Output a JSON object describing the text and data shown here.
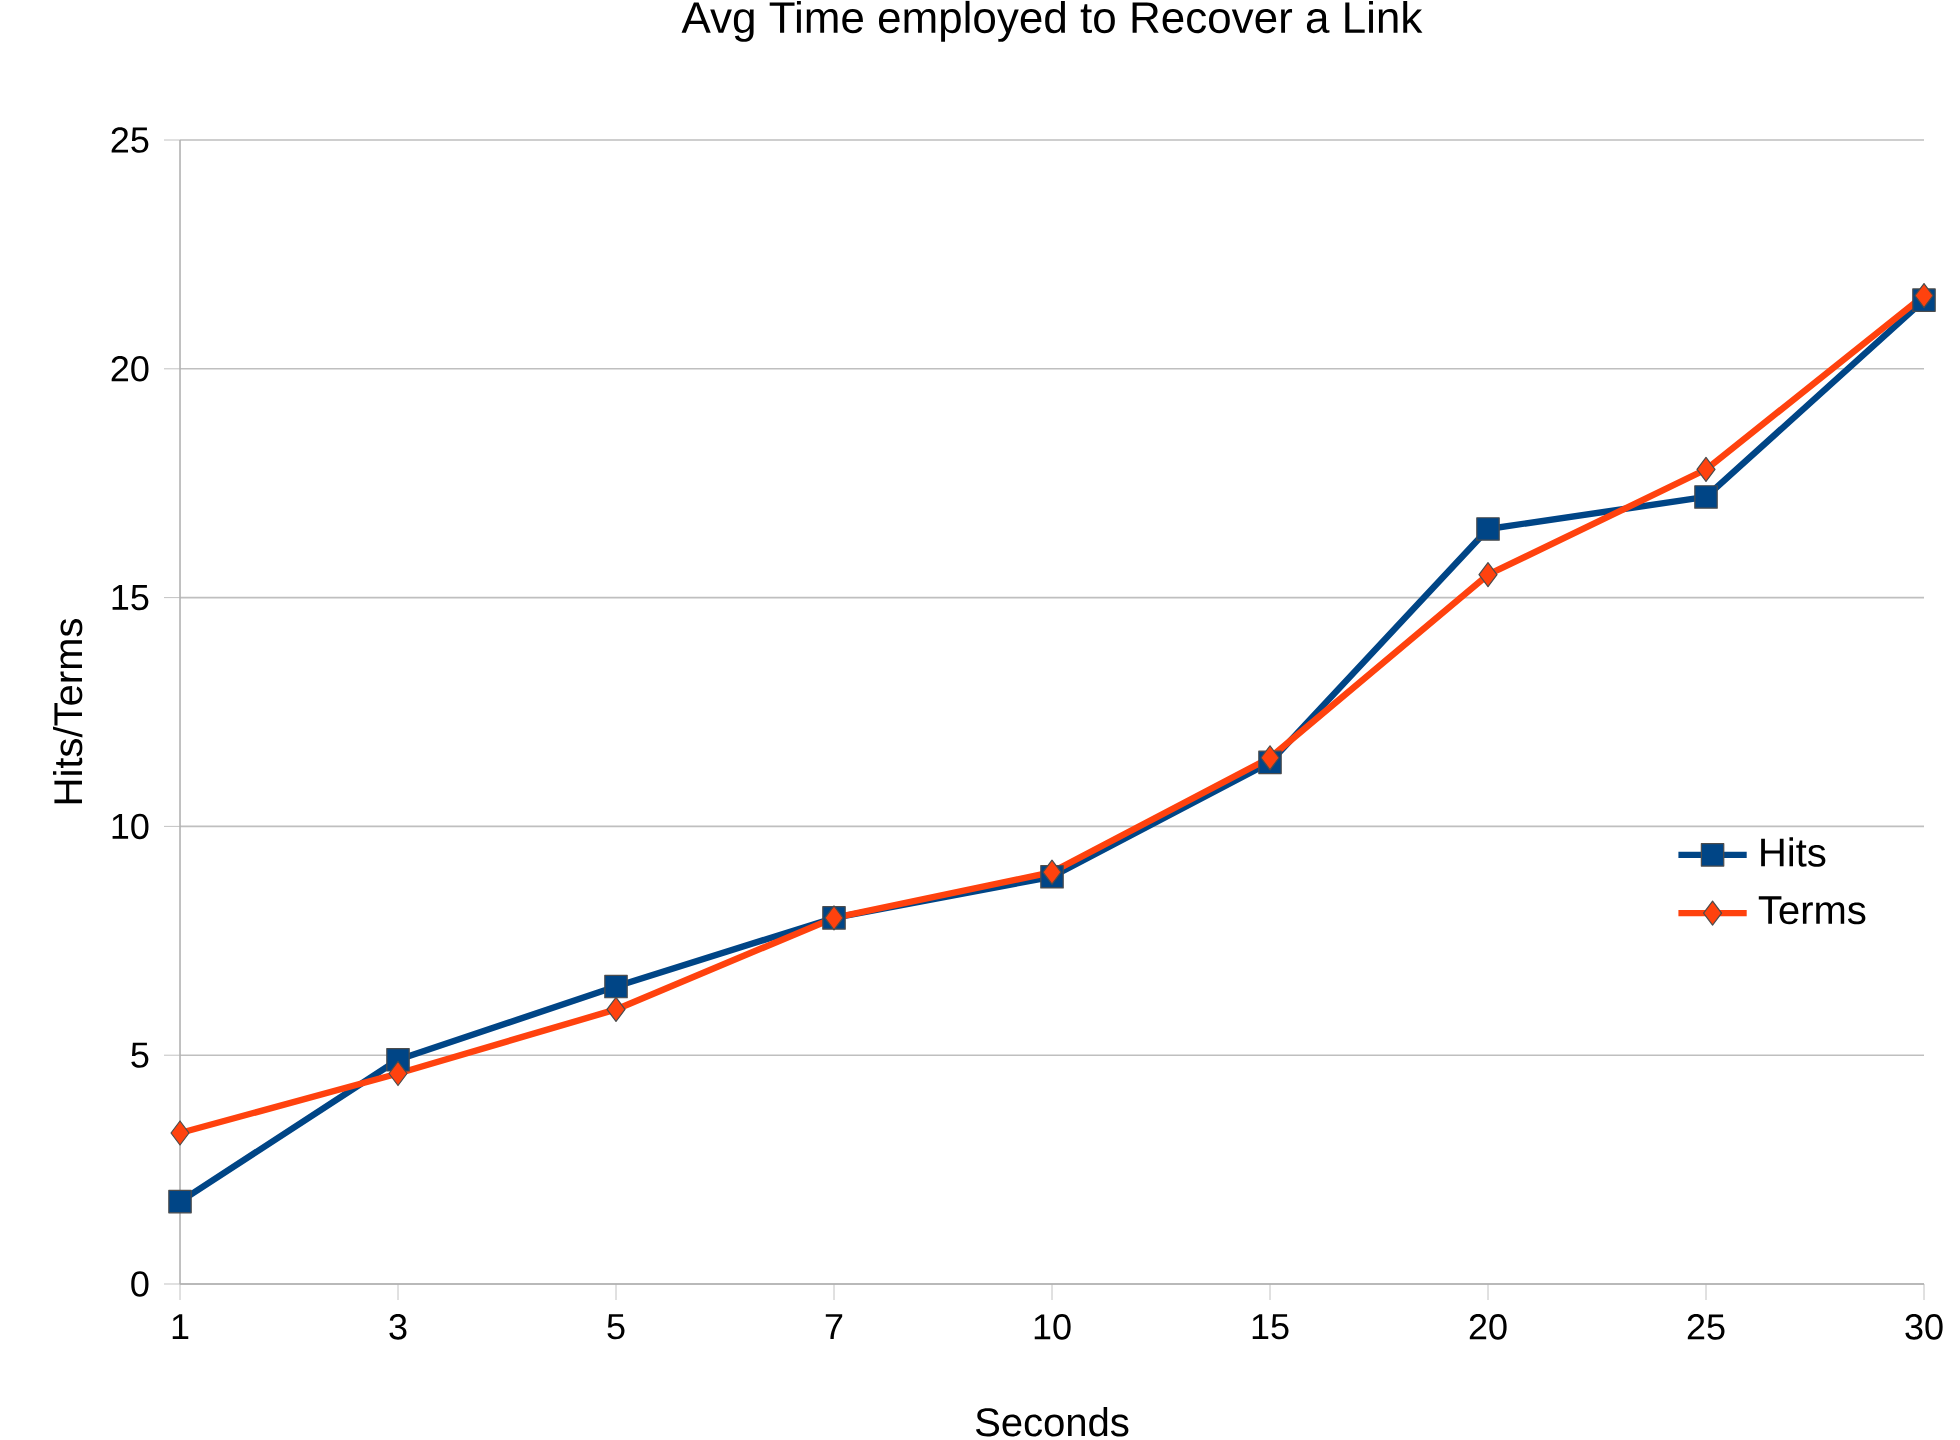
{
  "chart_data": {
    "type": "line",
    "title": "Avg Time employed to Recover a Link",
    "xlabel": "Seconds",
    "ylabel": "Hits/Terms",
    "categories": [
      "1",
      "3",
      "5",
      "7",
      "10",
      "15",
      "20",
      "25",
      "30"
    ],
    "series": [
      {
        "name": "Hits",
        "color": "#004586",
        "marker": "square",
        "values": [
          1.8,
          4.9,
          6.5,
          8.0,
          8.9,
          11.4,
          16.5,
          17.2,
          21.5
        ]
      },
      {
        "name": "Terms",
        "color": "#ff420e",
        "marker": "diamond",
        "values": [
          3.3,
          4.6,
          6.0,
          8.0,
          9.0,
          11.5,
          15.5,
          17.8,
          21.6
        ]
      }
    ],
    "ylim": [
      0,
      25
    ],
    "yticks": [
      0,
      5,
      10,
      15,
      20,
      25
    ],
    "grid": "y",
    "legend": "right",
    "line_style": "solid"
  }
}
